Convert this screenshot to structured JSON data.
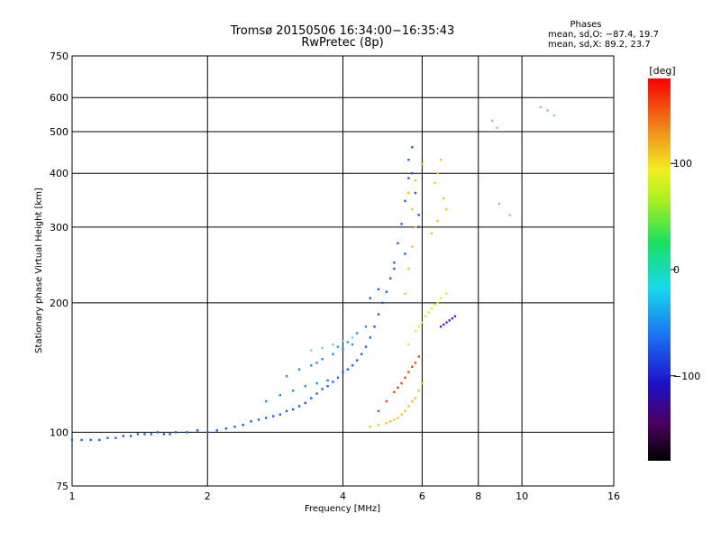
{
  "header": {
    "title_line1": "Tromsø 20150506 16:34:00−16:35:43",
    "title_line2": "RwPretec (8p)",
    "phase_title": "Phases",
    "phase_o": "mean, sd,O: −87.4, 19.7",
    "phase_x": "mean, sd,X:  89.2, 23.7"
  },
  "chart_data": {
    "type": "scatter",
    "title": "Tromsø 20150506 16:34:00−16:35:43",
    "subtitle": "RwPretec (8p)",
    "xlabel": "Frequency [MHz]",
    "ylabel": "Stationary phase Virtual Height [km]",
    "x_scale": "log",
    "y_scale": "log",
    "xlim": [
      1,
      16
    ],
    "ylim": [
      75,
      750
    ],
    "x_ticks": [
      1,
      2,
      4,
      6,
      8,
      10,
      16
    ],
    "x_tick_labels": [
      "1",
      "2",
      "4",
      "6",
      "8",
      "10",
      "16"
    ],
    "y_ticks": [
      75,
      100,
      200,
      300,
      400,
      500,
      600,
      750
    ],
    "y_tick_labels": [
      "75",
      "100",
      "200",
      "300",
      "400",
      "500",
      "600",
      "750"
    ],
    "grid": true,
    "colorbar": {
      "label": "[deg]",
      "range": [
        -180,
        180
      ],
      "ticks": [
        100,
        0,
        -100
      ],
      "tick_labels": [
        "100",
        "0",
        "−100"
      ],
      "colormap": "rainbow"
    },
    "series": [
      {
        "color": "#1e5fe6",
        "points": [
          [
            1.0,
            96
          ],
          [
            1.05,
            96
          ],
          [
            1.1,
            96
          ],
          [
            1.15,
            96
          ],
          [
            1.2,
            97
          ],
          [
            1.25,
            97
          ],
          [
            1.3,
            98
          ],
          [
            1.35,
            98
          ],
          [
            1.4,
            99
          ],
          [
            1.45,
            99
          ],
          [
            1.5,
            99
          ],
          [
            1.55,
            100
          ],
          [
            1.6,
            99
          ],
          [
            1.65,
            99
          ],
          [
            1.7,
            100
          ],
          [
            1.8,
            100
          ],
          [
            1.9,
            101
          ],
          [
            2.0,
            100
          ],
          [
            2.1,
            101
          ],
          [
            2.2,
            102
          ],
          [
            2.3,
            103
          ],
          [
            2.4,
            104
          ],
          [
            2.5,
            106
          ],
          [
            2.6,
            107
          ],
          [
            2.7,
            108
          ],
          [
            2.8,
            109
          ],
          [
            2.9,
            110
          ],
          [
            3.0,
            112
          ],
          [
            3.1,
            113
          ],
          [
            3.2,
            115
          ],
          [
            3.3,
            117
          ],
          [
            3.4,
            120
          ],
          [
            3.5,
            123
          ],
          [
            3.6,
            126
          ],
          [
            3.7,
            128
          ],
          [
            3.8,
            131
          ],
          [
            3.9,
            134
          ],
          [
            4.0,
            138
          ],
          [
            4.1,
            140
          ],
          [
            4.2,
            143
          ],
          [
            4.3,
            147
          ],
          [
            4.4,
            152
          ],
          [
            4.5,
            158
          ],
          [
            4.6,
            166
          ],
          [
            4.7,
            176
          ],
          [
            4.8,
            188
          ],
          [
            4.9,
            200
          ],
          [
            5.0,
            212
          ],
          [
            5.1,
            228
          ],
          [
            5.2,
            248
          ],
          [
            5.3,
            275
          ],
          [
            5.4,
            305
          ],
          [
            5.5,
            345
          ],
          [
            5.6,
            390
          ],
          [
            5.6,
            430
          ],
          [
            5.7,
            460
          ],
          [
            5.7,
            400
          ],
          [
            5.8,
            360
          ],
          [
            5.9,
            320
          ],
          [
            5.9,
            300
          ],
          [
            5.5,
            260
          ],
          [
            5.2,
            240
          ],
          [
            4.8,
            215
          ],
          [
            4.6,
            205
          ]
        ]
      },
      {
        "color": "#2a8be0",
        "points": [
          [
            3.0,
            135
          ],
          [
            3.2,
            140
          ],
          [
            3.4,
            143
          ],
          [
            3.6,
            148
          ],
          [
            3.8,
            152
          ],
          [
            4.0,
            156
          ],
          [
            4.2,
            160
          ],
          [
            3.5,
            145
          ],
          [
            3.9,
            158
          ],
          [
            4.1,
            162
          ],
          [
            4.3,
            170
          ],
          [
            4.5,
            176
          ],
          [
            2.7,
            118
          ],
          [
            2.9,
            122
          ],
          [
            3.1,
            125
          ],
          [
            3.3,
            128
          ],
          [
            3.5,
            130
          ],
          [
            3.7,
            132
          ]
        ]
      },
      {
        "color": "#f0c420",
        "points": [
          [
            4.6,
            103
          ],
          [
            4.8,
            104
          ],
          [
            5.0,
            105
          ],
          [
            5.2,
            107
          ],
          [
            5.4,
            110
          ],
          [
            5.6,
            115
          ],
          [
            5.8,
            120
          ],
          [
            6.0,
            130
          ],
          [
            5.9,
            125
          ],
          [
            5.7,
            118
          ],
          [
            5.5,
            112
          ],
          [
            5.3,
            108
          ],
          [
            5.1,
            106
          ],
          [
            5.5,
            210
          ],
          [
            5.6,
            240
          ],
          [
            5.7,
            270
          ],
          [
            5.8,
            300
          ],
          [
            5.7,
            330
          ],
          [
            5.6,
            360
          ],
          [
            5.8,
            385
          ],
          [
            6.0,
            420
          ],
          [
            6.5,
            400
          ],
          [
            6.6,
            430
          ],
          [
            6.4,
            380
          ],
          [
            6.7,
            350
          ],
          [
            6.8,
            330
          ],
          [
            6.5,
            310
          ],
          [
            6.3,
            290
          ]
        ]
      },
      {
        "color": "#e24a14",
        "points": [
          [
            4.8,
            112
          ],
          [
            5.0,
            118
          ],
          [
            5.2,
            124
          ],
          [
            5.4,
            130
          ],
          [
            5.6,
            138
          ],
          [
            5.8,
            145
          ],
          [
            5.3,
            127
          ],
          [
            5.5,
            134
          ],
          [
            5.7,
            142
          ],
          [
            5.9,
            150
          ]
        ]
      },
      {
        "color": "#c8f03c",
        "points": [
          [
            5.6,
            160
          ],
          [
            5.8,
            172
          ],
          [
            6.0,
            180
          ],
          [
            6.2,
            190
          ],
          [
            6.4,
            198
          ],
          [
            6.6,
            205
          ],
          [
            6.8,
            210
          ],
          [
            5.9,
            176
          ],
          [
            6.1,
            186
          ],
          [
            6.3,
            194
          ],
          [
            6.5,
            200
          ]
        ]
      },
      {
        "color": "#6a1cc8",
        "points": [
          [
            6.8,
            180
          ],
          [
            6.9,
            182
          ],
          [
            7.0,
            184
          ],
          [
            7.1,
            186
          ],
          [
            6.6,
            176
          ],
          [
            6.7,
            178
          ]
        ]
      },
      {
        "color": "#7cc8e8",
        "points": [
          [
            3.4,
            155
          ],
          [
            3.6,
            157
          ],
          [
            3.8,
            160
          ],
          [
            4.0,
            163
          ],
          [
            4.2,
            166
          ],
          [
            8.6,
            530
          ],
          [
            8.8,
            510
          ],
          [
            11,
            570
          ],
          [
            11.4,
            560
          ],
          [
            11.8,
            545
          ],
          [
            8.9,
            340
          ],
          [
            9.4,
            320
          ]
        ]
      }
    ]
  }
}
